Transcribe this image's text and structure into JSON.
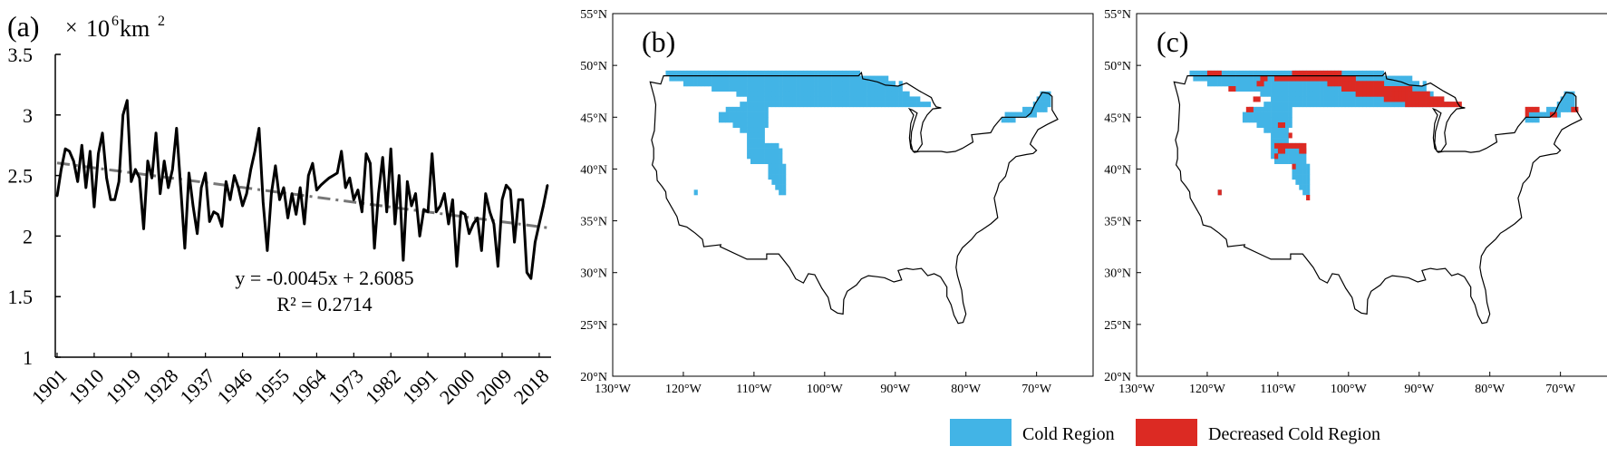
{
  "chart_data": [
    {
      "type": "line",
      "panel_label": "(a)",
      "unit_prefix": "×",
      "unit_base": "10",
      "unit_exp": "6",
      "unit_km": "km",
      "unit_exp2": "2",
      "ylim": [
        1,
        3.5
      ],
      "yticks": [
        "3.5",
        "3",
        "2.5",
        "2",
        "1.5",
        "1"
      ],
      "xticks": [
        "1901",
        "1910",
        "1919",
        "1928",
        "1937",
        "1946",
        "1955",
        "1964",
        "1973",
        "1982",
        "1991",
        "2000",
        "2009",
        "2018"
      ],
      "x_start": 1901,
      "x_end": 2020,
      "trend": {
        "slope": -0.0045,
        "intercept": 2.6085
      },
      "equation": "y = -0.0045x + 2.6085",
      "r2_text": "R² = 0.2714",
      "series": [
        {
          "values": [
            2.33,
            2.55,
            2.72,
            2.7,
            2.62,
            2.45,
            2.75,
            2.4,
            2.7,
            2.24,
            2.68,
            2.85,
            2.48,
            2.3,
            2.3,
            2.45,
            3.0,
            3.12,
            2.45,
            2.55,
            2.48,
            2.06,
            2.62,
            2.48,
            2.85,
            2.35,
            2.62,
            2.4,
            2.55,
            2.89,
            2.4,
            1.9,
            2.52,
            2.25,
            2.02,
            2.4,
            2.52,
            2.12,
            2.2,
            2.18,
            2.08,
            2.45,
            2.3,
            2.5,
            2.4,
            2.25,
            2.35,
            2.55,
            2.7,
            2.89,
            2.28,
            1.88,
            2.35,
            2.58,
            2.3,
            2.4,
            2.15,
            2.35,
            2.18,
            2.4,
            2.1,
            2.5,
            2.6,
            2.38,
            2.42,
            2.45,
            2.48,
            2.5,
            2.52,
            2.7,
            2.4,
            2.48,
            2.3,
            2.38,
            2.2,
            2.68,
            2.6,
            1.9,
            2.35,
            2.65,
            2.2,
            2.72,
            2.1,
            2.5,
            1.8,
            2.45,
            2.25,
            2.35,
            2.0,
            2.22,
            2.2,
            2.68,
            2.2,
            2.25,
            2.35,
            2.1,
            2.3,
            1.75,
            2.2,
            2.18,
            2.02,
            2.1,
            2.15,
            1.88,
            2.35,
            2.2,
            2.1,
            1.75,
            2.3,
            2.42,
            2.38,
            1.95,
            2.3,
            2.3,
            1.7,
            1.65,
            1.95,
            2.1,
            2.25,
            2.42
          ]
        }
      ]
    },
    {
      "type": "map",
      "panel_label": "(b)",
      "lat_ticks": [
        "55°N",
        "50°N",
        "45°N",
        "40°N",
        "35°N",
        "30°N",
        "25°N",
        "20°N"
      ],
      "lon_ticks": [
        "130°W",
        "120°W",
        "110°W",
        "100°W",
        "90°W",
        "80°W",
        "70°W"
      ],
      "lon_range": [
        -130,
        -62
      ],
      "lat_range": [
        20,
        55
      ]
    },
    {
      "type": "map",
      "panel_label": "(c)",
      "lat_ticks": [
        "55°N",
        "50°N",
        "45°N",
        "40°N",
        "35°N",
        "30°N",
        "25°N",
        "20°N"
      ],
      "lon_ticks": [
        "130°W",
        "120°W",
        "110°W",
        "100°W",
        "90°W",
        "80°W",
        "70°W"
      ],
      "lon_range": [
        -130,
        -62
      ],
      "lat_range": [
        20,
        55
      ]
    }
  ],
  "legend": {
    "items": [
      {
        "label": "Cold Region",
        "color": "#42b4e6"
      },
      {
        "label": "Decreased Cold Region",
        "color": "#dc2a23"
      }
    ]
  },
  "colors": {
    "series": "#000000",
    "trend": "#777777"
  }
}
